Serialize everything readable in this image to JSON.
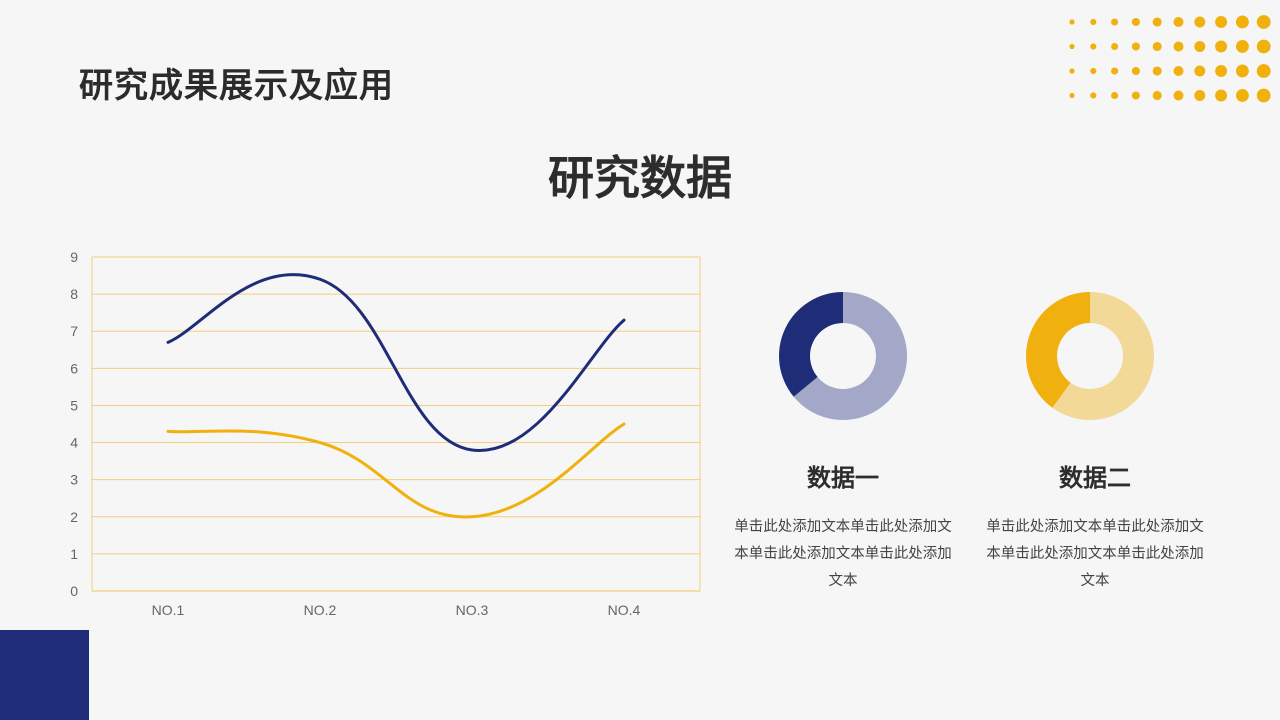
{
  "header": {
    "title": "研究成果展示及应用"
  },
  "section": {
    "title": "研究数据"
  },
  "colors": {
    "navy": "#1f2d78",
    "gold": "#f0b10f",
    "navy_light": "#a3a8c8",
    "gold_light": "#f3d998",
    "grid": "#f2d07a"
  },
  "chart_data": [
    {
      "type": "line",
      "title": "",
      "xlabel": "",
      "ylabel": "",
      "categories": [
        "NO.1",
        "NO.2",
        "NO.3",
        "NO.4"
      ],
      "series": [
        {
          "values": [
            6.7,
            8.4,
            3.8,
            7.3
          ],
          "color": "#1f2d78"
        },
        {
          "values": [
            4.3,
            4.0,
            2.0,
            4.5
          ],
          "color": "#f0b10f"
        }
      ],
      "ylim": [
        0,
        9
      ],
      "yticks": [
        "0",
        "1",
        "2",
        "3",
        "4",
        "5",
        "6",
        "7",
        "8",
        "9"
      ],
      "grid": true,
      "legend": "none",
      "smooth": true
    },
    {
      "type": "pie",
      "donut": true,
      "slices": [
        {
          "value": 64,
          "color": "#a3a8c8"
        },
        {
          "value": 36,
          "color": "#1f2d78"
        }
      ]
    },
    {
      "type": "pie",
      "donut": true,
      "slices": [
        {
          "value": 60,
          "color": "#f3d998"
        },
        {
          "value": 40,
          "color": "#f0b10f"
        }
      ]
    }
  ],
  "cards": [
    {
      "title": "数据一",
      "text": "单击此处添加文本单击此处添加文本单击此处添加文本单击此处添加文本"
    },
    {
      "title": "数据二",
      "text": "单击此处添加文本单击此处添加文本单击此处添加文本单击此处添加文本"
    }
  ]
}
